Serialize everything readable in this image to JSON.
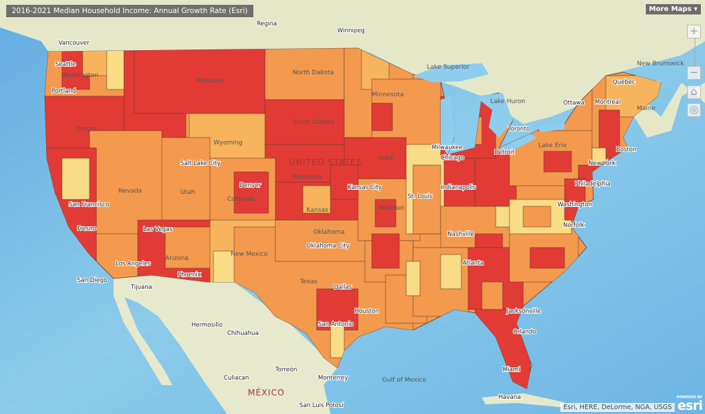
{
  "title": "2016-2021 Median Household Income: Annual Growth Rate (Esri)",
  "more_maps": "More Maps ▾",
  "controls": {
    "zoom_in": "+",
    "zoom_out": "−",
    "home": "⌂",
    "locate": "◎"
  },
  "attribution": "Esri, HERE, DeLorme, NGA, USGS",
  "logo": {
    "powered_by": "POWERED BY",
    "name": "esri"
  },
  "colors": {
    "ocean": "#7cc0e6",
    "land": "#e6e9cc",
    "highest": "#e23b36",
    "high": "#f39a4f",
    "medium": "#f7b45c",
    "low": "#f8dc86",
    "lakes": "#8fcdef"
  },
  "labels": {
    "country": "UNITED STATES",
    "mexico": "MÉXICO",
    "gulf": "Gulf of Mexico",
    "lake_superior": "Lake Superior",
    "lake_huron": "Lake Huron",
    "lake_erie": "Lake Erie",
    "new_brunswick": "New Brunswick",
    "cities": [
      "Vancouver",
      "Regina",
      "Winnipeg",
      "Quebec",
      "Ottawa",
      "Montreal",
      "Toronto",
      "Milwaukee",
      "Detroit",
      "Chicago",
      "Boston",
      "New York",
      "Philadelphia",
      "Washington",
      "Norfolk",
      "Denver",
      "Salt Lake City",
      "Las Vegas",
      "Los Angeles",
      "San Diego",
      "Tijuana",
      "Phoenix",
      "Oklahoma City",
      "Kansas City",
      "St. Louis",
      "Indianapolis",
      "Nashville",
      "Atlanta",
      "Jacksonville",
      "Orlando",
      "Miami",
      "Houston",
      "San Antonio",
      "Dallas",
      "Hermosillo",
      "Chihuahua",
      "Torreón",
      "Monterrey",
      "Culiacan",
      "San Luis Potosí",
      "Havana",
      "Fresno",
      "San Francisco",
      "Seattle",
      "Portland"
    ],
    "states": [
      "Washington",
      "Oregon",
      "Montana",
      "Wyoming",
      "North Dakota",
      "South Dakota",
      "Nebraska",
      "Kansas",
      "Nevada",
      "Utah",
      "Colorado",
      "Arizona",
      "New Mexico",
      "Texas",
      "Oklahoma",
      "Minnesota",
      "Iowa",
      "Missouri",
      "Maine"
    ]
  }
}
